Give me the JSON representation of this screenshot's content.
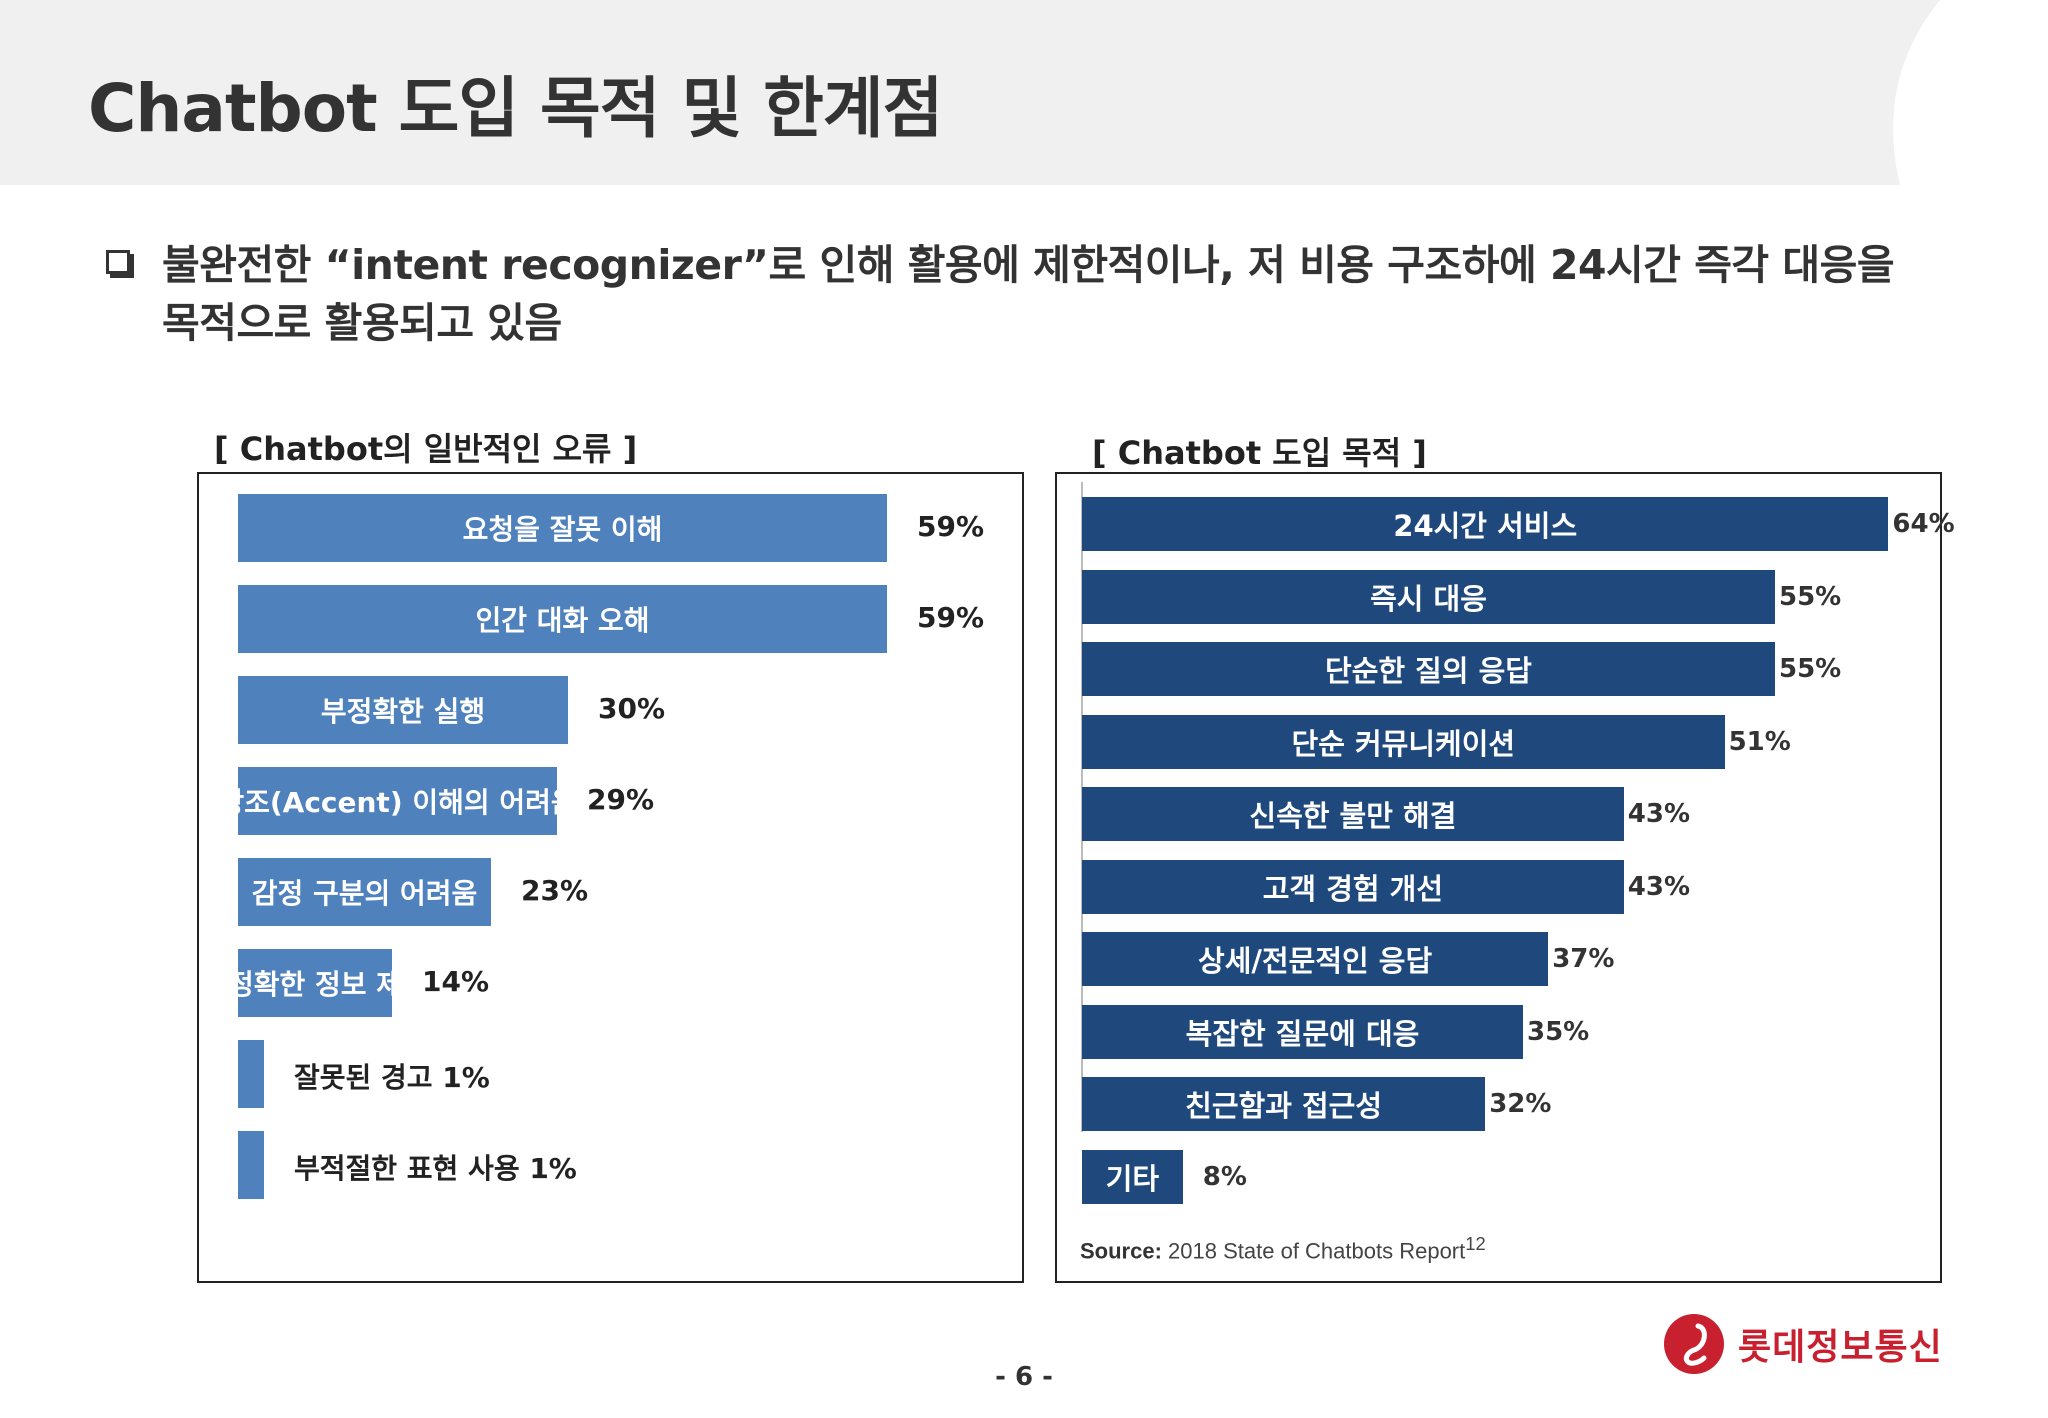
{
  "header": {
    "title": "Chatbot 도입 목적 및 한계점"
  },
  "summary": {
    "text": "불완전한 “intent recognizer”로 인해 활용에 제한적이나, 저 비용 구조하에 24시간 즉각 대응을 목적으로 활용되고 있음"
  },
  "colors": {
    "left_bar": "#4f81bd",
    "right_bar": "#1f497d",
    "brand_red": "#c8202f"
  },
  "chart_data": [
    {
      "type": "bar",
      "orientation": "horizontal",
      "title": "[ Chatbot의 일반적인 오류 ]",
      "categories": [
        "요청을 잘못 이해",
        "인간 대화 오해",
        "부정확한 실행",
        "강조(Accent) 이해의 어려움",
        "감정 구분의 어려움",
        "부정확한 정보 제공",
        "잘못된 경고",
        "부적절한 표현 사용"
      ],
      "values": [
        59,
        59,
        30,
        29,
        23,
        14,
        1,
        1
      ],
      "labels": [
        "59%",
        "59%",
        "30%",
        "29%",
        "23%",
        "14%",
        "1%",
        "1%"
      ],
      "unit": "%",
      "xlim": [
        0,
        70
      ]
    },
    {
      "type": "bar",
      "orientation": "horizontal",
      "title": "[ Chatbot 도입 목적 ]",
      "categories": [
        "24시간 서비스",
        "즉시 대응",
        "단순한 질의 응답",
        "단순 커뮤니케이션",
        "신속한 불만 해결",
        "고객 경험 개선",
        "상세/전문적인 응답",
        "복잡한 질문에 대응",
        "친근함과 접근성",
        "기타"
      ],
      "values": [
        64,
        55,
        55,
        51,
        43,
        43,
        37,
        35,
        32,
        8
      ],
      "labels": [
        "64%",
        "55%",
        "55%",
        "51%",
        "43%",
        "43%",
        "37%",
        "35%",
        "32%",
        "8%"
      ],
      "unit": "%",
      "xlim": [
        0,
        70
      ],
      "source_label": "Source:",
      "source_text": "2018 State of Chatbots Report",
      "source_sup": "12"
    }
  ],
  "footer": {
    "page_number": "- 6 -",
    "brand_name": "롯데정보통신"
  }
}
